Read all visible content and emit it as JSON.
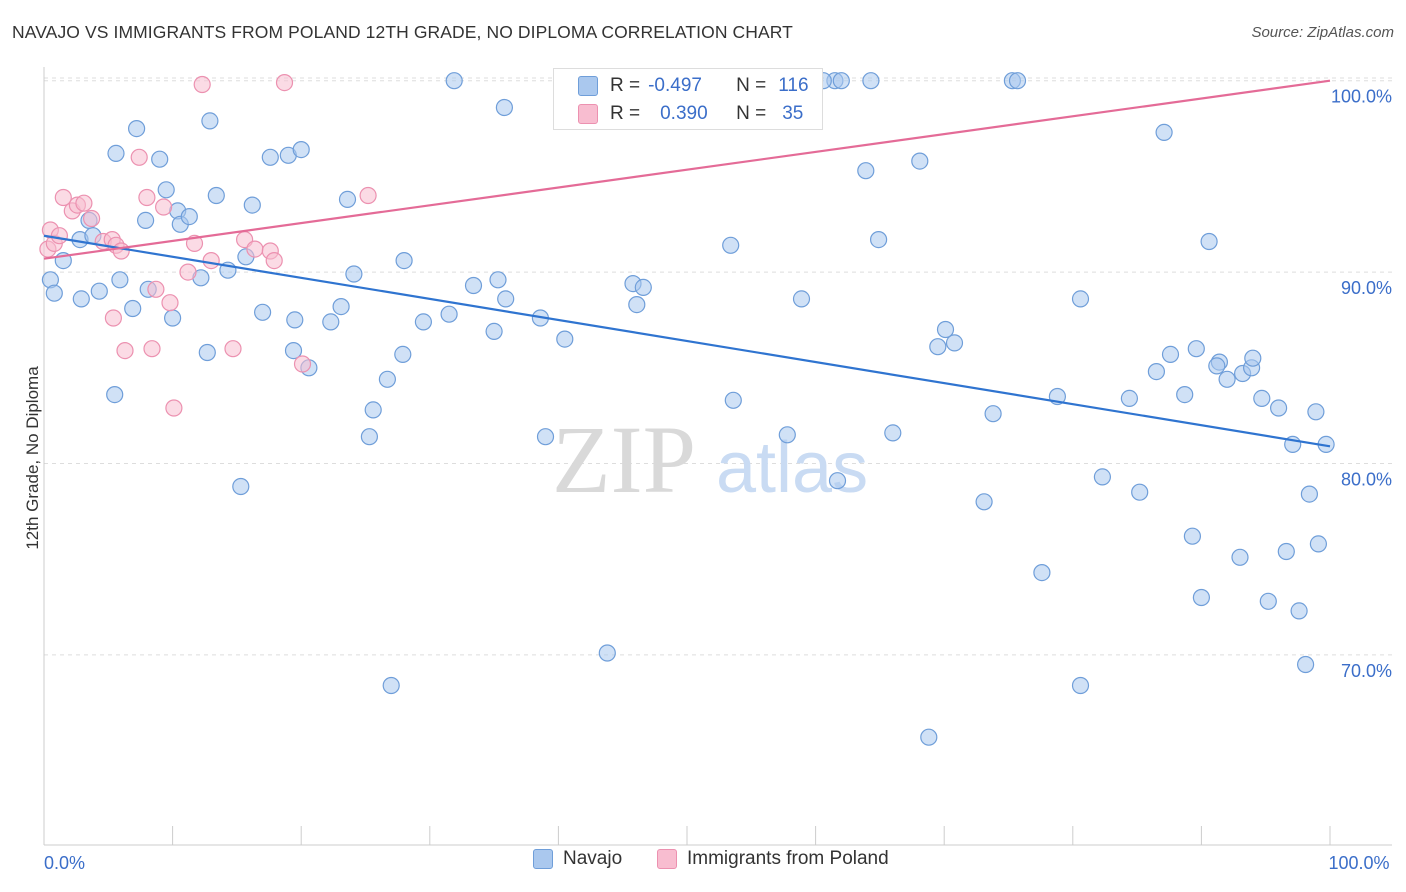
{
  "title": "NAVAJO VS IMMIGRANTS FROM POLAND 12TH GRADE, NO DIPLOMA CORRELATION CHART",
  "source": "Source: ZipAtlas.com",
  "watermark": {
    "zip": "ZIP",
    "atlas": "atlas"
  },
  "stats": {
    "r_label": "R =",
    "n_label": "N =",
    "navajo": {
      "r": "-0.497",
      "n": "116"
    },
    "poland": {
      "r": "0.390",
      "n": "35"
    }
  },
  "legend": {
    "navajo": "Navajo",
    "poland": "Immigrants from Poland"
  },
  "colors": {
    "navajo_fill": "#aac8ee",
    "navajo_stroke": "#6f9ed9",
    "navajo_line": "#2f74d0",
    "poland_fill": "#f8bdd0",
    "poland_stroke": "#ec91b0",
    "poland_line": "#e46b97",
    "tick_label": "#3b6ec9",
    "grid": "#dddddd"
  },
  "chart_data": {
    "type": "scatter",
    "xlabel": "",
    "ylabel": "12th Grade, No Diploma",
    "xlim": [
      0,
      100
    ],
    "ylim": [
      60.5,
      101.5
    ],
    "x_tick_labels": [
      {
        "value": 0,
        "label": "0.0%"
      },
      {
        "value": 100,
        "label": "100.0%"
      }
    ],
    "y_tick_labels": [
      {
        "value": 100,
        "label": "100.0%"
      },
      {
        "value": 90,
        "label": "90.0%"
      },
      {
        "value": 80,
        "label": "80.0%"
      },
      {
        "value": 70,
        "label": "70.0%"
      }
    ],
    "grid": true,
    "legend_position": "bottom",
    "series": [
      {
        "name": "Navajo",
        "r": -0.497,
        "n": 116,
        "trend": [
          [
            0,
            91.9
          ],
          [
            100,
            80.9
          ]
        ],
        "points": [
          [
            0.5,
            89.6
          ],
          [
            1.5,
            90.6
          ],
          [
            0.8,
            88.9
          ],
          [
            2.8,
            91.7
          ],
          [
            2.9,
            88.6
          ],
          [
            3.5,
            92.7
          ],
          [
            4.3,
            89.0
          ],
          [
            3.8,
            91.9
          ],
          [
            5.6,
            96.2
          ],
          [
            5.9,
            89.6
          ],
          [
            5.5,
            83.6
          ],
          [
            7.2,
            97.5
          ],
          [
            7.9,
            92.7
          ],
          [
            6.9,
            88.1
          ],
          [
            8.1,
            89.1
          ],
          [
            9.0,
            95.9
          ],
          [
            9.5,
            94.3
          ],
          [
            10.0,
            87.6
          ],
          [
            10.4,
            93.2
          ],
          [
            10.6,
            92.5
          ],
          [
            11.3,
            92.9
          ],
          [
            12.2,
            89.7
          ],
          [
            12.7,
            85.8
          ],
          [
            12.9,
            97.9
          ],
          [
            13.4,
            94.0
          ],
          [
            14.3,
            90.1
          ],
          [
            15.3,
            78.8
          ],
          [
            15.7,
            90.8
          ],
          [
            16.2,
            93.5
          ],
          [
            17.0,
            87.9
          ],
          [
            17.6,
            96.0
          ],
          [
            19.0,
            96.1
          ],
          [
            19.4,
            85.9
          ],
          [
            19.5,
            87.5
          ],
          [
            20.0,
            96.4
          ],
          [
            20.6,
            85.0
          ],
          [
            22.3,
            87.4
          ],
          [
            23.1,
            88.2
          ],
          [
            23.6,
            93.8
          ],
          [
            24.1,
            89.9
          ],
          [
            25.3,
            81.4
          ],
          [
            25.6,
            82.8
          ],
          [
            26.7,
            84.4
          ],
          [
            27.0,
            68.4
          ],
          [
            27.9,
            85.7
          ],
          [
            28.0,
            90.6
          ],
          [
            29.5,
            87.4
          ],
          [
            31.5,
            87.8
          ],
          [
            31.9,
            100.0
          ],
          [
            33.4,
            89.3
          ],
          [
            35.3,
            89.6
          ],
          [
            35.8,
            98.6
          ],
          [
            35.9,
            88.6
          ],
          [
            35.0,
            86.9
          ],
          [
            38.6,
            87.6
          ],
          [
            39.0,
            81.4
          ],
          [
            40.5,
            86.5
          ],
          [
            43.0,
            100.0
          ],
          [
            43.8,
            70.1
          ],
          [
            45.8,
            89.4
          ],
          [
            46.1,
            88.3
          ],
          [
            46.6,
            89.2
          ],
          [
            53.4,
            91.4
          ],
          [
            53.6,
            83.3
          ],
          [
            58.9,
            88.6
          ],
          [
            61.5,
            100.0
          ],
          [
            62.0,
            100.0
          ],
          [
            58.3,
            100.0
          ],
          [
            57.8,
            81.5
          ],
          [
            58.6,
            100.0
          ],
          [
            60.6,
            100.0
          ],
          [
            61.7,
            79.1
          ],
          [
            63.9,
            95.3
          ],
          [
            64.3,
            100.0
          ],
          [
            64.9,
            91.7
          ],
          [
            66.0,
            81.6
          ],
          [
            68.1,
            95.8
          ],
          [
            68.8,
            65.7
          ],
          [
            69.5,
            86.1
          ],
          [
            70.1,
            87.0
          ],
          [
            70.8,
            86.3
          ],
          [
            73.1,
            78.0
          ],
          [
            73.8,
            82.6
          ],
          [
            75.3,
            100.0
          ],
          [
            75.7,
            100.0
          ],
          [
            77.6,
            74.3
          ],
          [
            78.8,
            83.5
          ],
          [
            80.6,
            68.4
          ],
          [
            80.6,
            88.6
          ],
          [
            82.3,
            79.3
          ],
          [
            84.4,
            83.4
          ],
          [
            85.2,
            78.5
          ],
          [
            87.1,
            97.3
          ],
          [
            86.5,
            84.8
          ],
          [
            87.6,
            85.7
          ],
          [
            88.7,
            83.6
          ],
          [
            89.3,
            76.2
          ],
          [
            89.6,
            86.0
          ],
          [
            90.0,
            73.0
          ],
          [
            90.6,
            91.6
          ],
          [
            91.4,
            85.3
          ],
          [
            91.2,
            85.1
          ],
          [
            92.0,
            84.4
          ],
          [
            93.2,
            84.7
          ],
          [
            93.0,
            75.1
          ],
          [
            93.9,
            85.0
          ],
          [
            94.0,
            85.5
          ],
          [
            94.7,
            83.4
          ],
          [
            95.2,
            72.8
          ],
          [
            96.0,
            82.9
          ],
          [
            96.6,
            75.4
          ],
          [
            97.1,
            81.0
          ],
          [
            97.6,
            72.3
          ],
          [
            98.1,
            69.5
          ],
          [
            98.4,
            78.4
          ],
          [
            99.1,
            75.8
          ],
          [
            98.9,
            82.7
          ],
          [
            99.7,
            81.0
          ],
          [
            53.6,
            100.0
          ],
          [
            55.7,
            99.8
          ]
        ]
      },
      {
        "name": "Immigrants from Poland",
        "r": 0.39,
        "n": 35,
        "trend": [
          [
            0,
            90.7
          ],
          [
            100,
            100.0
          ]
        ],
        "points": [
          [
            0.3,
            91.2
          ],
          [
            0.5,
            92.2
          ],
          [
            0.8,
            91.5
          ],
          [
            1.2,
            91.9
          ],
          [
            1.5,
            93.9
          ],
          [
            2.2,
            93.2
          ],
          [
            2.6,
            93.5
          ],
          [
            3.1,
            93.6
          ],
          [
            3.7,
            92.8
          ],
          [
            4.6,
            91.6
          ],
          [
            5.3,
            91.7
          ],
          [
            5.6,
            91.4
          ],
          [
            6.0,
            91.1
          ],
          [
            5.4,
            87.6
          ],
          [
            6.3,
            85.9
          ],
          [
            7.4,
            96.0
          ],
          [
            8.0,
            93.9
          ],
          [
            8.4,
            86.0
          ],
          [
            8.7,
            89.1
          ],
          [
            9.3,
            93.4
          ],
          [
            9.8,
            88.4
          ],
          [
            10.1,
            82.9
          ],
          [
            11.2,
            90.0
          ],
          [
            11.7,
            91.5
          ],
          [
            12.3,
            99.8
          ],
          [
            13.0,
            90.6
          ],
          [
            14.7,
            86.0
          ],
          [
            15.6,
            91.7
          ],
          [
            16.4,
            91.2
          ],
          [
            17.6,
            91.1
          ],
          [
            17.9,
            90.6
          ],
          [
            18.7,
            99.9
          ],
          [
            20.1,
            85.2
          ],
          [
            25.2,
            94.0
          ],
          [
            45.0,
            99.9
          ]
        ]
      }
    ]
  }
}
